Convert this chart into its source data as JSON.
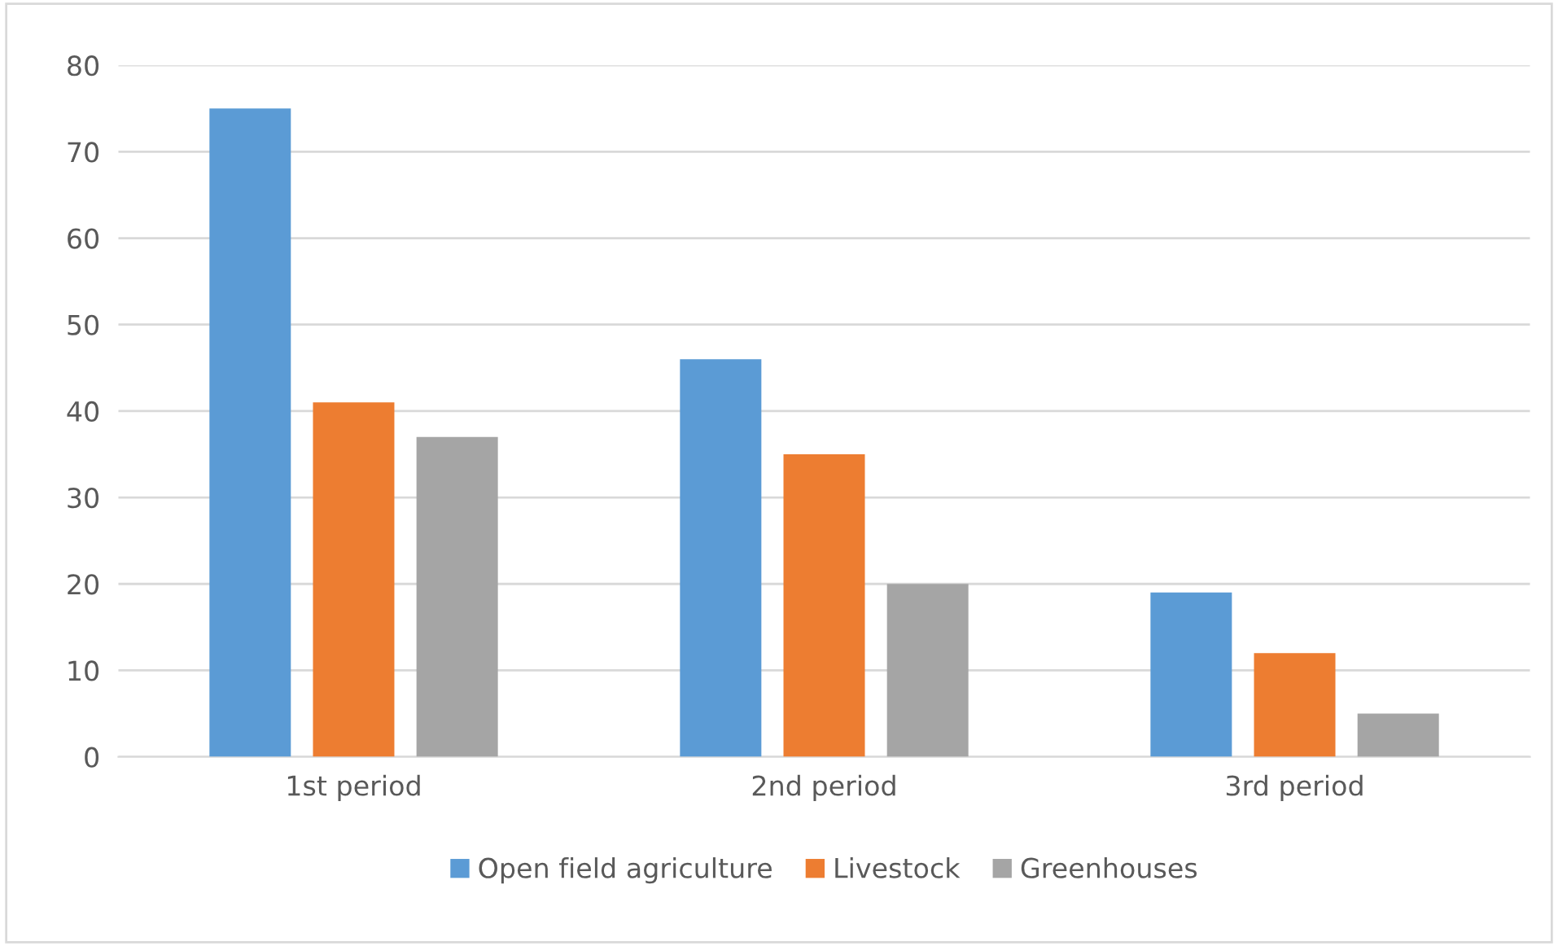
{
  "chart_data": {
    "type": "bar",
    "categories": [
      "1st period",
      "2nd period",
      "3rd period"
    ],
    "series": [
      {
        "name": "Open field agriculture",
        "color": "#5b9bd5",
        "values": [
          75,
          46,
          19
        ]
      },
      {
        "name": "Livestock",
        "color": "#ed7d31",
        "values": [
          41,
          35,
          12
        ]
      },
      {
        "name": "Greenhouses",
        "color": "#a5a5a5",
        "values": [
          37,
          20,
          5
        ]
      }
    ],
    "ylim": [
      0,
      80
    ],
    "yticks": [
      0,
      10,
      20,
      30,
      40,
      50,
      60,
      70,
      80
    ],
    "grid": "y",
    "legend": "bottom"
  }
}
